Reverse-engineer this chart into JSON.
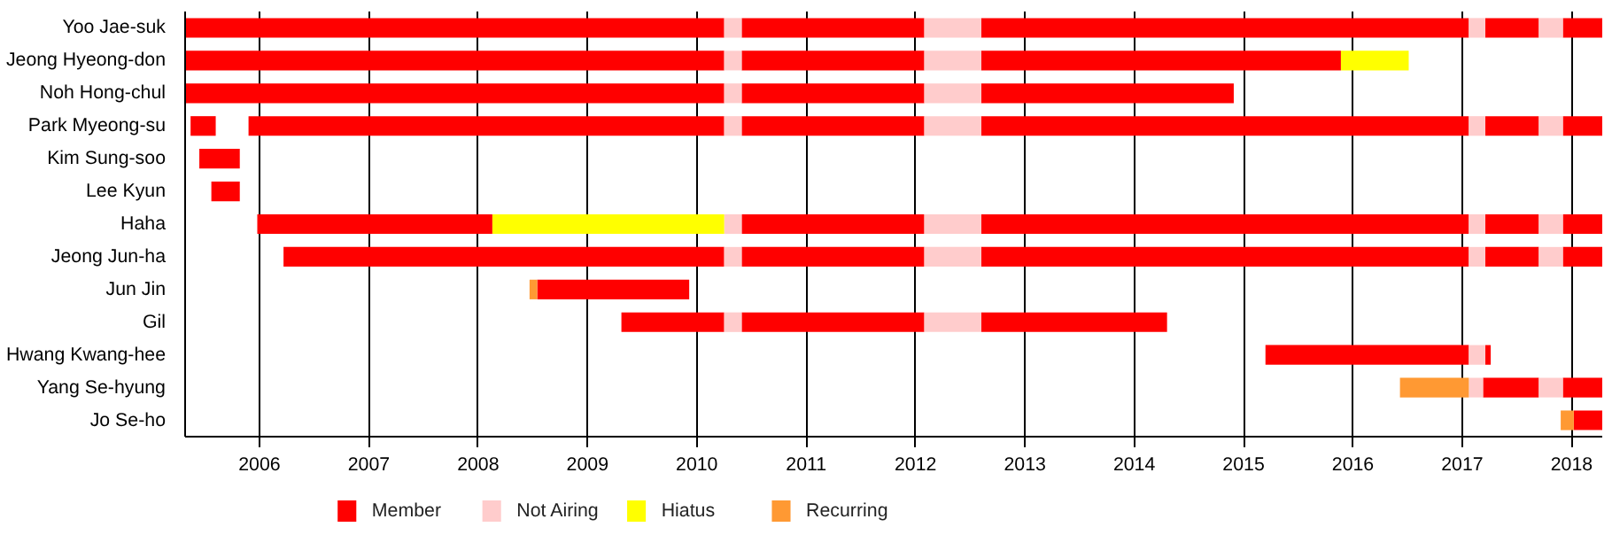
{
  "chart_data": {
    "type": "bar",
    "orientation": "horizontal",
    "categories": [
      "Yoo Jae-suk",
      "Jeong Hyeong-don",
      "Noh Hong-chul",
      "Park Myeong-su",
      "Kim Sung-soo",
      "Lee Kyun",
      "Haha",
      "Jeong Jun-ha",
      "Jun Jin",
      "Gil",
      "Hwang Kwang-hee",
      "Yang Se-hyung",
      "Jo Se-ho"
    ],
    "xlim": [
      2005.32,
      2018.28
    ],
    "xticks": [
      2006,
      2007,
      2008,
      2009,
      2010,
      2011,
      2012,
      2013,
      2014,
      2015,
      2016,
      2017,
      2018
    ],
    "grid": "x",
    "legend": "bottom",
    "series": [
      {
        "name": "Member",
        "color": "#ff0000",
        "base": [
          2005.32,
          2005.32,
          2005.32,
          2005.37,
          2005.45,
          2005.56,
          2005.98,
          2006.22,
          2008.54,
          2009.31,
          2015.2,
          2017.19,
          2018.02
        ],
        "values": [
          4.93,
          4.93,
          4.93,
          0.23,
          0.37,
          0.26,
          2.15,
          4.03,
          1.39,
          0.94,
          1.86,
          0.51,
          0.26
        ]
      },
      {
        "color": "#ff0000",
        "base": [
          2010.41,
          2010.41,
          2010.41,
          2005.9,
          null,
          null,
          2010.41,
          2010.41,
          null,
          2010.41,
          2017.21,
          2017.92,
          null
        ],
        "values": [
          1.67,
          1.67,
          1.67,
          4.35,
          null,
          null,
          1.67,
          1.67,
          null,
          1.67,
          0.05,
          0.36,
          null
        ]
      },
      {
        "color": "#ff0000",
        "base": [
          2012.6,
          2012.6,
          2012.6,
          2010.41,
          null,
          null,
          2012.6,
          2012.6,
          null,
          2012.6,
          null,
          null,
          null
        ],
        "values": [
          4.46,
          3.29,
          2.31,
          1.67,
          null,
          null,
          4.46,
          4.46,
          null,
          1.7,
          null,
          null,
          null
        ]
      },
      {
        "color": "#ff0000",
        "base": [
          2017.21,
          null,
          null,
          2012.6,
          null,
          null,
          2017.21,
          2017.21,
          null,
          null,
          null,
          null,
          null
        ],
        "values": [
          0.49,
          null,
          null,
          4.46,
          null,
          null,
          0.49,
          0.49,
          null,
          null,
          null,
          null,
          null
        ]
      },
      {
        "color": "#ff0000",
        "base": [
          2017.92,
          null,
          null,
          2017.21,
          null,
          null,
          2017.92,
          2017.92,
          null,
          null,
          null,
          null,
          null
        ],
        "values": [
          0.36,
          null,
          null,
          0.49,
          null,
          null,
          0.36,
          0.36,
          null,
          null,
          null,
          null,
          null
        ]
      },
      {
        "color": "#ff0000",
        "base": [
          null,
          null,
          null,
          2017.92,
          null,
          null,
          null,
          null,
          null,
          null,
          null,
          null,
          null
        ],
        "values": [
          null,
          null,
          null,
          0.36,
          null,
          null,
          null,
          null,
          null,
          null,
          null,
          null,
          null
        ]
      },
      {
        "name": "Not Airing",
        "color": "#ffcccc",
        "base": [
          2010.25,
          2010.25,
          2010.25,
          2010.25,
          null,
          null,
          2010.25,
          2010.25,
          null,
          2010.25,
          2017.06,
          2017.06,
          null
        ],
        "values": [
          0.16,
          0.16,
          0.16,
          0.16,
          null,
          null,
          0.16,
          0.16,
          null,
          0.16,
          0.15,
          0.13,
          null
        ]
      },
      {
        "color": "#ffcccc",
        "base": [
          2012.08,
          2012.08,
          2012.08,
          2012.08,
          null,
          null,
          2012.08,
          2012.08,
          null,
          2012.08,
          null,
          2017.7,
          null
        ],
        "values": [
          0.52,
          0.52,
          0.52,
          0.52,
          null,
          null,
          0.52,
          0.52,
          null,
          0.52,
          null,
          0.22,
          null
        ]
      },
      {
        "color": "#ffcccc",
        "base": [
          2017.06,
          null,
          null,
          2017.06,
          null,
          null,
          2017.06,
          2017.06,
          null,
          null,
          null,
          null,
          null
        ],
        "values": [
          0.15,
          null,
          null,
          0.15,
          null,
          null,
          0.15,
          0.15,
          null,
          null,
          null,
          null,
          null
        ]
      },
      {
        "color": "#ffcccc",
        "base": [
          2017.7,
          null,
          null,
          2017.7,
          null,
          null,
          2017.7,
          2017.7,
          null,
          null,
          null,
          null,
          null
        ],
        "values": [
          0.22,
          null,
          null,
          0.22,
          null,
          null,
          0.22,
          0.22,
          null,
          null,
          null,
          null,
          null
        ]
      },
      {
        "name": "Hiatus",
        "color": "#ffff00",
        "base": [
          null,
          2015.89,
          null,
          null,
          null,
          null,
          2008.13,
          null,
          null,
          null,
          null,
          null,
          null
        ],
        "values": [
          null,
          0.62,
          null,
          null,
          null,
          null,
          2.12,
          null,
          null,
          null,
          null,
          null,
          null
        ]
      },
      {
        "name": "Recurring",
        "color": "#ff9933",
        "base": [
          null,
          null,
          null,
          null,
          null,
          null,
          null,
          null,
          2008.47,
          null,
          null,
          2016.43,
          2017.9
        ],
        "values": [
          null,
          null,
          null,
          null,
          null,
          null,
          null,
          null,
          0.07,
          null,
          null,
          0.63,
          0.12
        ]
      }
    ]
  }
}
